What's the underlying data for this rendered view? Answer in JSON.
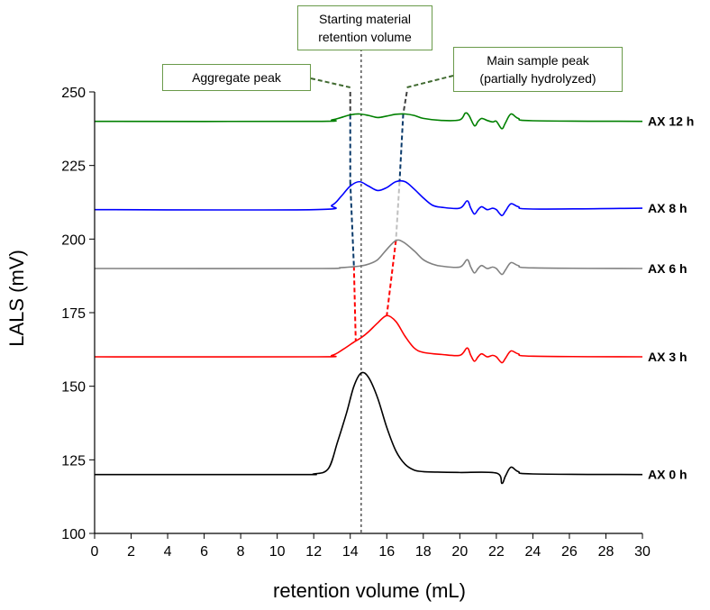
{
  "chart_data": {
    "type": "line",
    "xlabel": "retention volume (mL)",
    "ylabel": "LALS (mV)",
    "xlim": [
      0,
      30
    ],
    "ylim": [
      100,
      250
    ],
    "xticks": [
      0,
      2,
      4,
      6,
      8,
      10,
      12,
      14,
      16,
      18,
      20,
      22,
      24,
      26,
      28,
      30
    ],
    "yticks": [
      100,
      125,
      150,
      175,
      200,
      225,
      250
    ],
    "grid": false,
    "series": [
      {
        "name": "AX 0 h",
        "color": "#000000",
        "x": [
          0,
          11,
          12,
          12.8,
          13.3,
          13.8,
          14.2,
          14.6,
          15.0,
          15.5,
          16.0,
          16.5,
          17.0,
          17.5,
          18.0,
          19.0,
          20.0,
          22.0,
          22.3,
          22.5,
          22.8,
          23.2,
          24.0,
          30.0
        ],
        "y": [
          120,
          120,
          120.2,
          122,
          131,
          141,
          150,
          154.5,
          153,
          146,
          136,
          128,
          123.5,
          121.5,
          121,
          120.8,
          120.7,
          120.5,
          117,
          119.5,
          122.5,
          121,
          120.2,
          120
        ]
      },
      {
        "name": "AX 3 h",
        "color": "#ff0000",
        "x": [
          0,
          12,
          13.0,
          13.6,
          14.2,
          14.6,
          15.0,
          15.5,
          16.0,
          16.5,
          17.0,
          17.5,
          18.0,
          19.0,
          20.0,
          20.4,
          20.6,
          20.8,
          21.0,
          21.2,
          21.5,
          21.8,
          22.0,
          22.3,
          22.5,
          22.8,
          23.2,
          24.0,
          30.0
        ],
        "y": [
          160,
          160,
          160.5,
          162.5,
          165,
          166.5,
          168.5,
          171.5,
          174,
          172,
          167,
          163,
          161.5,
          160.8,
          160.5,
          163,
          160.5,
          158.5,
          160,
          161,
          160,
          160.5,
          160,
          158,
          159.5,
          162,
          161,
          160.2,
          160
        ]
      },
      {
        "name": "AX 6 h",
        "color": "#808080",
        "x": [
          0,
          12,
          13.5,
          14.5,
          15.0,
          15.5,
          16.0,
          16.5,
          16.9,
          17.5,
          18.0,
          18.5,
          19.0,
          20.0,
          20.4,
          20.6,
          20.8,
          21.0,
          21.2,
          21.5,
          21.8,
          22.0,
          22.3,
          22.5,
          22.8,
          23.2,
          24.0,
          30.0
        ],
        "y": [
          190,
          190,
          190.3,
          190.8,
          191.5,
          193,
          196.5,
          199.5,
          199,
          196,
          193,
          191.5,
          190.8,
          190.5,
          193,
          190.5,
          188.5,
          190,
          191,
          190,
          190.5,
          190,
          188,
          189.5,
          192,
          191,
          190.2,
          190
        ]
      },
      {
        "name": "AX 8 h",
        "color": "#0000ff",
        "x": [
          0,
          12,
          13.0,
          13.5,
          14.0,
          14.5,
          15.0,
          15.5,
          16.0,
          16.5,
          17.0,
          17.5,
          18.0,
          18.5,
          19.0,
          20.0,
          20.4,
          20.6,
          20.8,
          21.0,
          21.2,
          21.5,
          21.8,
          22.0,
          22.3,
          22.5,
          22.8,
          23.2,
          24.0,
          30.0
        ],
        "y": [
          210,
          210,
          211.5,
          214.5,
          218,
          219.5,
          218,
          216.5,
          217.5,
          219.5,
          219.5,
          217,
          214,
          211.5,
          210.8,
          210.5,
          213,
          210.5,
          208.5,
          210,
          211,
          210,
          210.5,
          210,
          208,
          209.5,
          212,
          211,
          210.2,
          210.5
        ]
      },
      {
        "name": "AX 12 h",
        "color": "#008000",
        "x": [
          0,
          12,
          13.0,
          13.5,
          14.0,
          14.5,
          15.0,
          15.5,
          16.0,
          16.5,
          17.0,
          17.5,
          18.0,
          19.0,
          20.0,
          20.3,
          20.5,
          20.8,
          21.0,
          21.2,
          21.5,
          21.8,
          22.0,
          22.3,
          22.5,
          22.8,
          23.2,
          24.0,
          30.0
        ],
        "y": [
          240,
          240,
          240.5,
          241.3,
          242.2,
          242.5,
          242,
          241.3,
          241.8,
          242.4,
          242.5,
          242,
          241,
          240.3,
          240.5,
          242.8,
          242,
          238.5,
          240,
          241,
          240.3,
          239.8,
          240,
          237.5,
          239.5,
          242.5,
          241,
          240.2,
          240
        ]
      }
    ],
    "reference_line": {
      "x": 14.6,
      "color": "#000000"
    },
    "annotations": [
      {
        "id": "starting",
        "text": [
          "Starting material",
          "retention volume"
        ]
      },
      {
        "id": "aggregate",
        "text": [
          "Aggregate peak"
        ],
        "connectors": [
          {
            "color": "#404040",
            "points": [
              [
                14.0,
                250
              ],
              [
                14.0,
                242.2
              ]
            ]
          },
          {
            "color": "#0a3a6b",
            "points": [
              [
                14.0,
                242.2
              ],
              [
                14.0,
                219.5
              ]
            ]
          },
          {
            "color": "#0a3a6b",
            "points": [
              [
                14.0,
                219.5
              ],
              [
                14.2,
                190.8
              ]
            ]
          },
          {
            "color": "#ff0000",
            "points": [
              [
                14.2,
                190.8
              ],
              [
                14.3,
                165.5
              ]
            ]
          }
        ]
      },
      {
        "id": "main",
        "text": [
          "Main sample peak",
          "(partially hydrolyzed)"
        ],
        "connectors": [
          {
            "color": "#404040",
            "points": [
              [
                17.1,
                250
              ],
              [
                16.9,
                242.5
              ]
            ]
          },
          {
            "color": "#0a3a6b",
            "points": [
              [
                16.9,
                242.5
              ],
              [
                16.7,
                219.5
              ]
            ]
          },
          {
            "color": "#c0c0c0",
            "points": [
              [
                16.7,
                219.5
              ],
              [
                16.5,
                199.5
              ]
            ]
          },
          {
            "color": "#ff0000",
            "points": [
              [
                16.5,
                199.5
              ],
              [
                16.0,
                174
              ]
            ]
          }
        ]
      }
    ]
  }
}
